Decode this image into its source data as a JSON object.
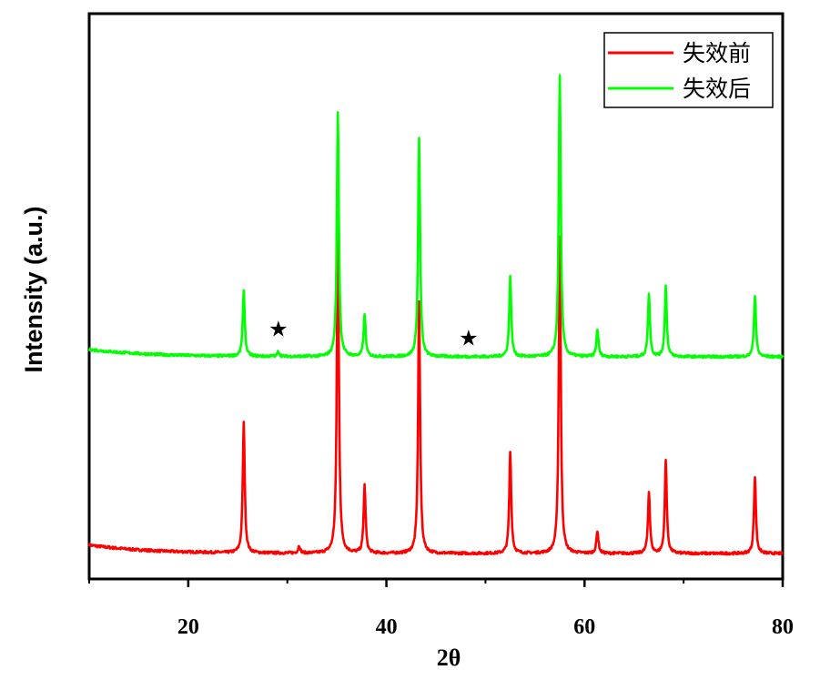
{
  "chart_data": {
    "type": "line",
    "xlabel": "2θ",
    "ylabel": "Intensity (a.u.)",
    "xlim": [
      10,
      80
    ],
    "ylim": [
      0,
      100
    ],
    "xticks": [
      20,
      40,
      60,
      80
    ],
    "yticks_shown": false,
    "grid": false,
    "legend_position": "top-right",
    "series": [
      {
        "name": "失效前",
        "color": "#ff0000",
        "baseline": 4.5,
        "baseline_rise_at_start": 1.5,
        "peaks": [
          {
            "x": 25.6,
            "y": 27.5
          },
          {
            "x": 31.2,
            "y": 5.8
          },
          {
            "x": 35.1,
            "y": 63.5
          },
          {
            "x": 37.8,
            "y": 16.5
          },
          {
            "x": 43.3,
            "y": 49.0
          },
          {
            "x": 52.5,
            "y": 22.5
          },
          {
            "x": 57.5,
            "y": 60.5
          },
          {
            "x": 61.3,
            "y": 8.5
          },
          {
            "x": 66.5,
            "y": 15.5
          },
          {
            "x": 68.2,
            "y": 21.0
          },
          {
            "x": 77.2,
            "y": 18.0
          }
        ]
      },
      {
        "name": "失效后",
        "color": "#00ff00",
        "baseline": 39.3,
        "baseline_rise_at_start": 1.3,
        "peaks": [
          {
            "x": 25.6,
            "y": 50.8
          },
          {
            "x": 29.1,
            "y": 40.2
          },
          {
            "x": 35.1,
            "y": 82.5
          },
          {
            "x": 37.8,
            "y": 46.8
          },
          {
            "x": 43.3,
            "y": 78.0
          },
          {
            "x": 52.5,
            "y": 53.5
          },
          {
            "x": 57.5,
            "y": 89.0
          },
          {
            "x": 61.3,
            "y": 44.2
          },
          {
            "x": 66.5,
            "y": 50.5
          },
          {
            "x": 68.2,
            "y": 51.8
          },
          {
            "x": 77.2,
            "y": 50.2
          }
        ]
      }
    ],
    "annotations": [
      {
        "text": "★",
        "x": 29.1,
        "y": 44.2
      },
      {
        "text": "★",
        "x": 48.3,
        "y": 42.6
      }
    ]
  }
}
